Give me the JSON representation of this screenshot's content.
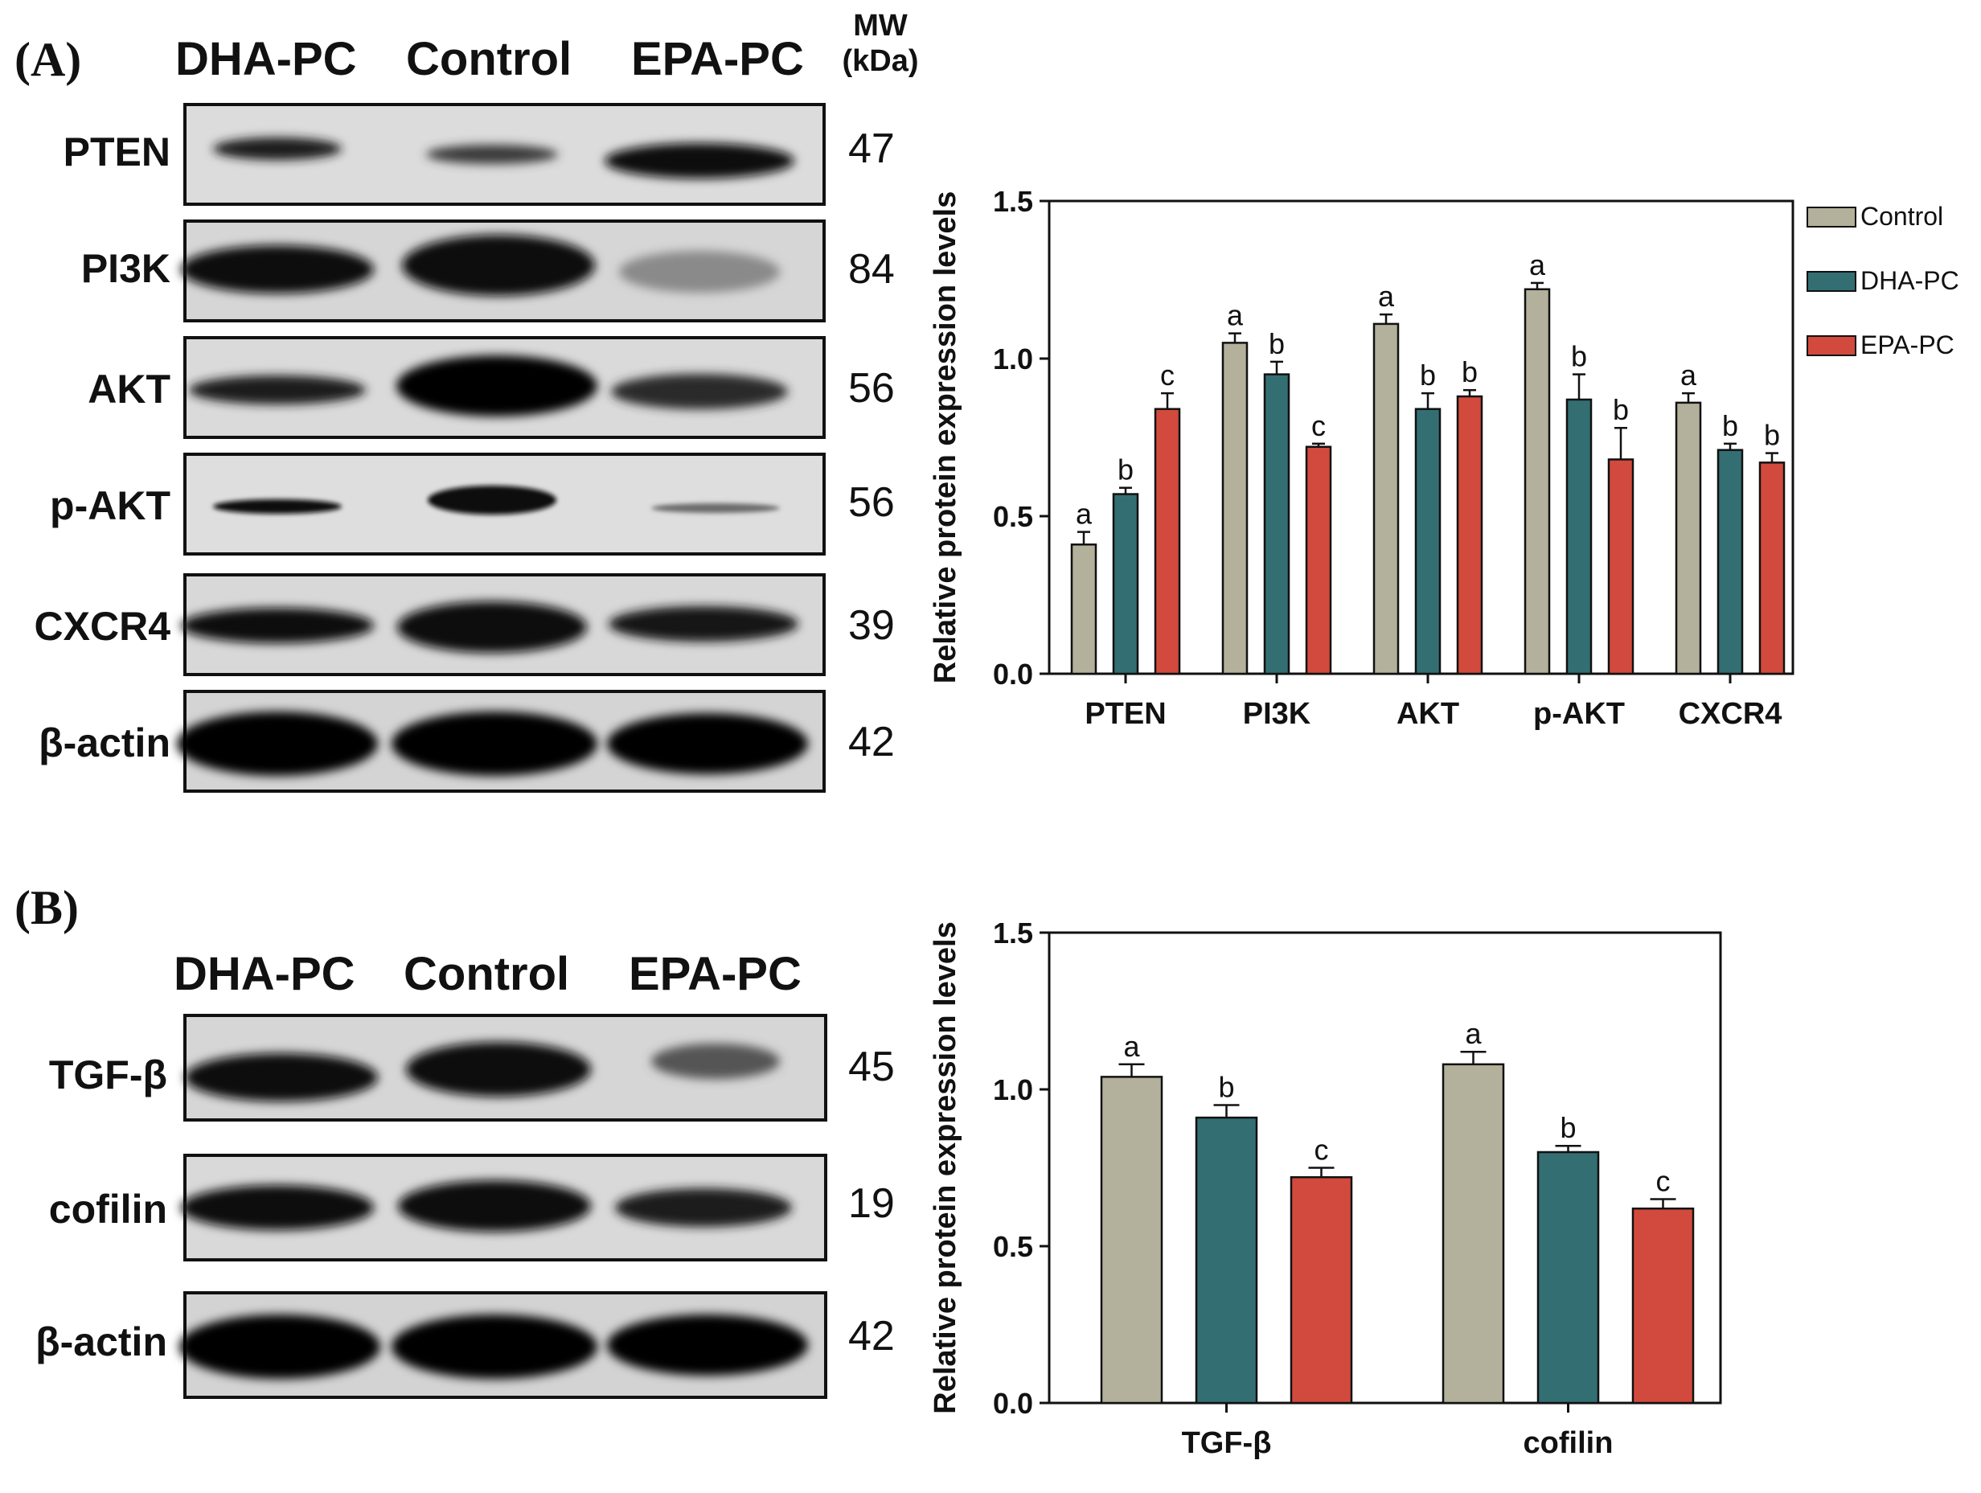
{
  "panel_a": {
    "label": "(A)",
    "lanes": [
      "DHA-PC",
      "Control",
      "EPA-PC"
    ],
    "mw_header": [
      "MW",
      "(kDa)"
    ],
    "blots": [
      {
        "protein": "PTEN",
        "mw": "47"
      },
      {
        "protein": "PI3K",
        "mw": "84"
      },
      {
        "protein": "AKT",
        "mw": "56"
      },
      {
        "protein": "p-AKT",
        "mw": "56"
      },
      {
        "protein": "CXCR4",
        "mw": "39"
      },
      {
        "protein": "β-actin",
        "mw": "42"
      }
    ]
  },
  "panel_b": {
    "label": "(B)",
    "lanes": [
      "DHA-PC",
      "Control",
      "EPA-PC"
    ],
    "blots": [
      {
        "protein": "TGF-β",
        "mw": "45"
      },
      {
        "protein": "cofilin",
        "mw": "19"
      },
      {
        "protein": "β-actin",
        "mw": "42"
      }
    ]
  },
  "colors": {
    "control": "#b3b09b",
    "dha": "#336e72",
    "epa": "#d24a3d"
  },
  "chart_data": [
    {
      "type": "bar",
      "title": "",
      "xlabel": "",
      "ylabel": "Relative protein expression levels",
      "ylim": [
        0,
        1.5
      ],
      "yticks": [
        "0.0",
        "0.5",
        "1.0",
        "1.5"
      ],
      "categories": [
        "PTEN",
        "PI3K",
        "AKT",
        "p-AKT",
        "CXCR4"
      ],
      "legend": {
        "position": "top-right",
        "entries": [
          "Control",
          "DHA-PC",
          "EPA-PC"
        ]
      },
      "series": [
        {
          "name": "Control",
          "values": [
            0.41,
            1.05,
            1.11,
            1.22,
            0.86
          ],
          "errors": [
            0.04,
            0.03,
            0.03,
            0.02,
            0.03
          ],
          "letters": [
            "a",
            "a",
            "a",
            "a",
            "a"
          ]
        },
        {
          "name": "DHA-PC",
          "values": [
            0.57,
            0.95,
            0.84,
            0.87,
            0.71
          ],
          "errors": [
            0.02,
            0.04,
            0.05,
            0.08,
            0.02
          ],
          "letters": [
            "b",
            "b",
            "b",
            "b",
            "b"
          ]
        },
        {
          "name": "EPA-PC",
          "values": [
            0.84,
            0.72,
            0.88,
            0.68,
            0.67
          ],
          "errors": [
            0.05,
            0.01,
            0.02,
            0.1,
            0.03
          ],
          "letters": [
            "c",
            "c",
            "b",
            "b",
            "b"
          ]
        }
      ]
    },
    {
      "type": "bar",
      "title": "",
      "xlabel": "",
      "ylabel": "Relative protein expression levels",
      "ylim": [
        0,
        1.5
      ],
      "yticks": [
        "0.0",
        "0.5",
        "1.0",
        "1.5"
      ],
      "categories": [
        "TGF-β",
        "cofilin"
      ],
      "series": [
        {
          "name": "Control",
          "values": [
            1.04,
            1.08
          ],
          "errors": [
            0.04,
            0.04
          ],
          "letters": [
            "a",
            "a"
          ]
        },
        {
          "name": "DHA-PC",
          "values": [
            0.91,
            0.8
          ],
          "errors": [
            0.04,
            0.02
          ],
          "letters": [
            "b",
            "b"
          ]
        },
        {
          "name": "EPA-PC",
          "values": [
            0.72,
            0.62
          ],
          "errors": [
            0.03,
            0.03
          ],
          "letters": [
            "c",
            "c"
          ]
        }
      ]
    }
  ]
}
